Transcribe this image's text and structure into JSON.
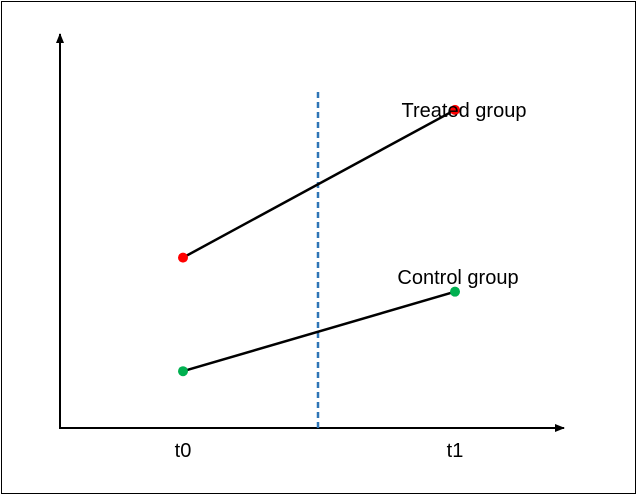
{
  "chart_data": {
    "type": "line",
    "title": "",
    "xlabel": "",
    "ylabel": "",
    "categories": [
      "t0",
      "t1"
    ],
    "treatment_divider": "between t0 and t1",
    "series": [
      {
        "name": "Treated group",
        "values": [
          3.0,
          5.6
        ],
        "color": "#ff0000"
      },
      {
        "name": "Control group",
        "values": [
          1.0,
          2.4
        ],
        "color": "#00b050"
      }
    ],
    "ylim": [
      0,
      7.5
    ],
    "grid": false,
    "line_color": "#000000",
    "divider_color": "#2e75b6"
  }
}
